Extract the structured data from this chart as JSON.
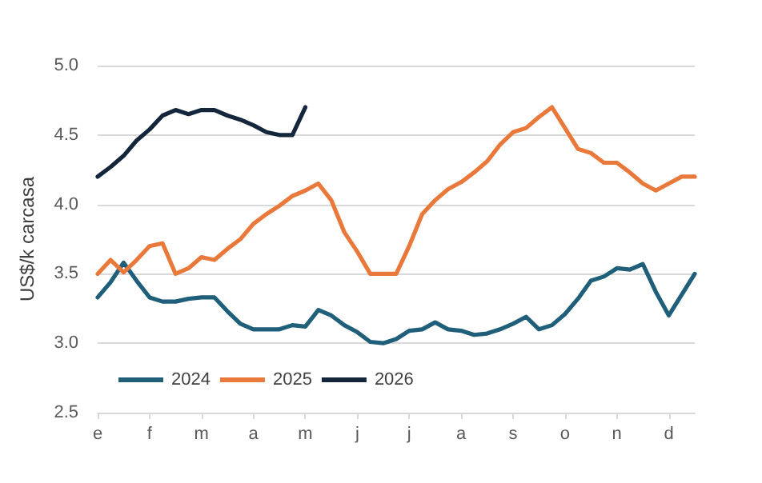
{
  "chart_data": {
    "type": "line",
    "ylabel": "US$/k carcasa",
    "categories": [
      "e",
      null,
      null,
      null,
      "f",
      null,
      null,
      null,
      "m",
      null,
      null,
      null,
      "a",
      null,
      null,
      null,
      "m",
      null,
      null,
      null,
      "j",
      null,
      null,
      null,
      "j",
      null,
      null,
      null,
      "a",
      null,
      null,
      null,
      "s",
      null,
      null,
      null,
      "o",
      null,
      null,
      null,
      "n",
      null,
      null,
      null,
      "d",
      null,
      null
    ],
    "ylim": [
      2.5,
      5.0
    ],
    "yticks": [
      {
        "value": 2.5,
        "label": "2.5"
      },
      {
        "value": 3.0,
        "label": "3.0"
      },
      {
        "value": 3.5,
        "label": "3.5"
      },
      {
        "value": 4.0,
        "label": "4.0"
      },
      {
        "value": 4.5,
        "label": "4.5"
      },
      {
        "value": 5.0,
        "label": "5.0"
      }
    ],
    "grid": "y",
    "legend": "bottom left",
    "marker": "none",
    "line_style": "solid",
    "series": [
      {
        "name": "2024",
        "color": "#1f5f7a",
        "values": [
          3.33,
          3.44,
          3.58,
          3.45,
          3.33,
          3.3,
          3.3,
          3.32,
          3.33,
          3.33,
          3.23,
          3.14,
          3.1,
          3.1,
          3.1,
          3.13,
          3.12,
          3.24,
          3.2,
          3.13,
          3.08,
          3.01,
          3.0,
          3.03,
          3.09,
          3.1,
          3.15,
          3.1,
          3.09,
          3.06,
          3.07,
          3.1,
          3.14,
          3.19,
          3.1,
          3.13,
          3.21,
          3.32,
          3.45,
          3.48,
          3.54,
          3.53,
          3.57,
          3.37,
          3.2,
          3.35,
          3.5
        ]
      },
      {
        "name": "2025",
        "color": "#e8793a",
        "values": [
          3.5,
          3.6,
          3.51,
          3.6,
          3.7,
          3.72,
          3.5,
          3.54,
          3.62,
          3.6,
          3.68,
          3.75,
          3.86,
          3.93,
          3.99,
          4.06,
          4.1,
          4.15,
          4.03,
          3.8,
          3.66,
          3.5,
          3.5,
          3.5,
          3.7,
          3.93,
          4.03,
          4.11,
          4.16,
          4.23,
          4.31,
          4.43,
          4.52,
          4.55,
          4.63,
          4.7,
          4.55,
          4.4,
          4.37,
          4.3,
          4.3,
          4.23,
          4.15,
          4.1,
          4.15,
          4.2,
          4.2
        ]
      },
      {
        "name": "2026",
        "color": "#14263b",
        "values": [
          4.2,
          4.27,
          4.35,
          4.46,
          4.54,
          4.64,
          4.68,
          4.65,
          4.68,
          4.68,
          4.64,
          4.61,
          4.57,
          4.52,
          4.5,
          4.5,
          4.7,
          null,
          null,
          null,
          null,
          null,
          null,
          null,
          null,
          null,
          null,
          null,
          null,
          null,
          null,
          null,
          null,
          null,
          null,
          null,
          null,
          null,
          null,
          null,
          null,
          null,
          null,
          null,
          null,
          null,
          null
        ]
      }
    ]
  }
}
